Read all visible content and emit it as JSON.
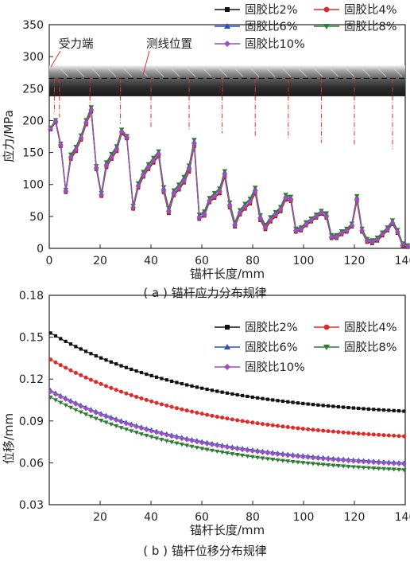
{
  "chart_data": [
    {
      "type": "line",
      "xlabel": "锚杆长度/mm",
      "ylabel": "应力/MPa",
      "caption": "( a ) 锚杆应力分布规律",
      "xlim": [
        0,
        140
      ],
      "ylim": [
        0,
        350
      ],
      "xticks": [
        "0",
        "20",
        "40",
        "60",
        "80",
        "100",
        "120",
        "140"
      ],
      "yticks": [
        "0",
        "50",
        "100",
        "150",
        "200",
        "250",
        "300",
        "350"
      ],
      "legend": "top-right",
      "annotations": [
        "受力端",
        "测线位置"
      ],
      "measure_points_x": [
        2,
        4,
        16,
        28,
        40,
        55,
        68,
        81,
        94,
        107,
        120,
        135
      ],
      "x": [
        0.5,
        2.5,
        4.5,
        6.5,
        8.5,
        10.5,
        12.5,
        14.5,
        16.5,
        18.5,
        20.5,
        22.5,
        24.5,
        26.5,
        28.5,
        30.5,
        33,
        35,
        37,
        39,
        41,
        43,
        45,
        47,
        49,
        51,
        53,
        55,
        57,
        59,
        61,
        63,
        65,
        67,
        69,
        71,
        73,
        75,
        77,
        79,
        81,
        83,
        85,
        87,
        89,
        91,
        93,
        95,
        97,
        99,
        101,
        103,
        105,
        107,
        109,
        111,
        113,
        115,
        117,
        119,
        121,
        123,
        125,
        127,
        129,
        131,
        133,
        135,
        137,
        139,
        141
      ],
      "series": [
        {
          "name": "固胶比2%",
          "color": "#111111",
          "marker": "square",
          "values": [
            186,
            197,
            160,
            88,
            140,
            152,
            170,
            194,
            214,
            124,
            82,
            127,
            140,
            152,
            180,
            172,
            62,
            95,
            112,
            124,
            134,
            144,
            88,
            55,
            83,
            92,
            103,
            120,
            160,
            46,
            51,
            72,
            79,
            86,
            112,
            64,
            34,
            53,
            62,
            70,
            86,
            44,
            30,
            42,
            50,
            58,
            76,
            74,
            26,
            28,
            36,
            42,
            48,
            54,
            48,
            16,
            16,
            22,
            26,
            34,
            74,
            26,
            10,
            8,
            12,
            20,
            28,
            38,
            24,
            4,
            2
          ]
        },
        {
          "name": "固胶比4%",
          "color": "#e02a2a",
          "marker": "circle",
          "values": [
            187,
            198,
            161,
            89,
            141,
            153,
            171,
            195,
            215,
            125,
            83,
            128,
            141,
            153,
            181,
            173,
            63,
            96,
            113,
            125,
            135,
            145,
            89,
            56,
            84,
            93,
            104,
            121,
            161,
            47,
            52,
            73,
            80,
            87,
            113,
            65,
            35,
            54,
            63,
            71,
            87,
            45,
            31,
            43,
            51,
            59,
            77,
            75,
            27,
            29,
            37,
            43,
            49,
            55,
            49,
            17,
            17,
            23,
            27,
            35,
            75,
            27,
            11,
            9,
            13,
            21,
            29,
            39,
            25,
            5,
            3
          ]
        },
        {
          "name": "固胶比6%",
          "color": "#2a4fbf",
          "marker": "triangle",
          "values": [
            188,
            200,
            163,
            91,
            145,
            157,
            175,
            199,
            219,
            128,
            86,
            133,
            146,
            158,
            184,
            175,
            66,
            100,
            118,
            130,
            140,
            150,
            94,
            61,
            89,
            98,
            110,
            128,
            167,
            51,
            56,
            77,
            85,
            92,
            119,
            70,
            39,
            58,
            68,
            76,
            93,
            50,
            35,
            47,
            55,
            63,
            82,
            79,
            30,
            32,
            40,
            46,
            52,
            58,
            53,
            20,
            20,
            26,
            30,
            38,
            80,
            30,
            14,
            12,
            16,
            24,
            32,
            42,
            28,
            7,
            4
          ]
        },
        {
          "name": "固胶比8%",
          "color": "#2e7d32",
          "marker": "triangle-down",
          "values": [
            189,
            201,
            164,
            92,
            147,
            159,
            177,
            201,
            221,
            129,
            87,
            135,
            148,
            160,
            186,
            176,
            67,
            102,
            120,
            132,
            142,
            152,
            96,
            63,
            91,
            100,
            112,
            130,
            170,
            53,
            58,
            79,
            87,
            94,
            121,
            72,
            41,
            60,
            70,
            78,
            95,
            52,
            37,
            49,
            57,
            65,
            84,
            81,
            31,
            33,
            41,
            47,
            53,
            59,
            55,
            21,
            21,
            27,
            31,
            39,
            82,
            31,
            15,
            13,
            17,
            25,
            33,
            44,
            29,
            8,
            5
          ]
        },
        {
          "name": "固胶比10%",
          "color": "#9c4fc0",
          "marker": "diamond",
          "values": [
            187,
            199,
            162,
            90,
            143,
            155,
            173,
            197,
            217,
            126,
            84,
            130,
            143,
            155,
            183,
            174,
            64,
            98,
            115,
            127,
            137,
            147,
            91,
            58,
            86,
            95,
            106,
            124,
            164,
            48,
            53,
            75,
            82,
            89,
            116,
            67,
            36,
            56,
            65,
            73,
            90,
            47,
            33,
            45,
            53,
            61,
            79,
            77,
            28,
            30,
            38,
            44,
            50,
            56,
            50,
            18,
            18,
            24,
            28,
            36,
            77,
            28,
            12,
            10,
            14,
            22,
            30,
            40,
            26,
            6,
            3
          ]
        }
      ]
    },
    {
      "type": "line",
      "xlabel": "锚杆长度/mm",
      "ylabel": "位移/mm",
      "caption": "( b ) 锚杆位移分布规律",
      "xlim": [
        0,
        140
      ],
      "ylim": [
        0.03,
        0.18
      ],
      "xticks": [
        "20",
        "40",
        "60",
        "80",
        "100",
        "120",
        "140"
      ],
      "yticks": [
        "0.03",
        "0.06",
        "0.09",
        "0.12",
        "0.15",
        "0.18"
      ],
      "legend": "top-right",
      "x_start": 0.5,
      "x_end": 139.5,
      "n_points": 71,
      "series": [
        {
          "name": "固胶比2%",
          "color": "#111111",
          "marker": "square",
          "start": 0.153,
          "end": 0.097,
          "k": 2.4
        },
        {
          "name": "固胶比4%",
          "color": "#e02a2a",
          "marker": "circle",
          "start": 0.134,
          "end": 0.079,
          "k": 2.4
        },
        {
          "name": "固胶比6%",
          "color": "#2a4fbf",
          "marker": "triangle",
          "start": 0.112,
          "end": 0.06,
          "k": 2.4
        },
        {
          "name": "固胶比8%",
          "color": "#2e7d32",
          "marker": "triangle-down",
          "start": 0.107,
          "end": 0.055,
          "k": 2.4
        },
        {
          "name": "固胶比10%",
          "color": "#9c4fc0",
          "marker": "diamond",
          "start": 0.111,
          "end": 0.059,
          "k": 2.4
        }
      ]
    }
  ]
}
